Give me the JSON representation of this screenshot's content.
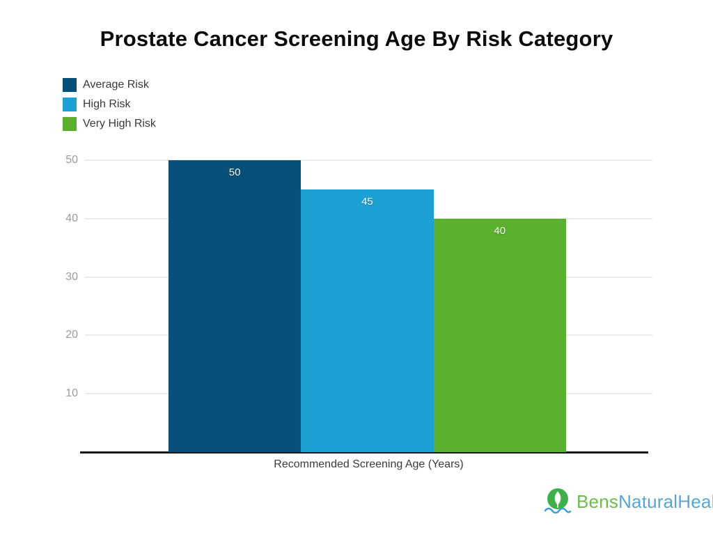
{
  "chart_data": {
    "type": "bar",
    "title": "Prostate Cancer Screening Age By Risk Category",
    "xlabel": "Recommended Screening Age (Years)",
    "ylabel": "",
    "ylim": [
      0,
      50
    ],
    "yticks": [
      10,
      20,
      30,
      40,
      50
    ],
    "grid": true,
    "legend_position": "top-left",
    "categories": [
      "Average Risk",
      "High Risk",
      "Very High Risk"
    ],
    "series": [
      {
        "name": "Average Risk",
        "value": 50,
        "color": "#06507a"
      },
      {
        "name": "High Risk",
        "value": 45,
        "color": "#1ba1d4"
      },
      {
        "name": "Very High Risk",
        "value": 40,
        "color": "#5bb02e"
      }
    ]
  },
  "axis": {
    "line_color": "#161616",
    "gridline_color": "#ebebeb",
    "tick_color": "#9b9b9b"
  },
  "logo": {
    "text_primary": "Bens",
    "text_secondary": "NaturalHealth",
    "primary_color": "#6cbe4b",
    "secondary_color": "#58a6d8",
    "icon_circle_color": "#3db049",
    "icon_wave_color": "#3c9fd6",
    "icon": "leaf-icon"
  }
}
